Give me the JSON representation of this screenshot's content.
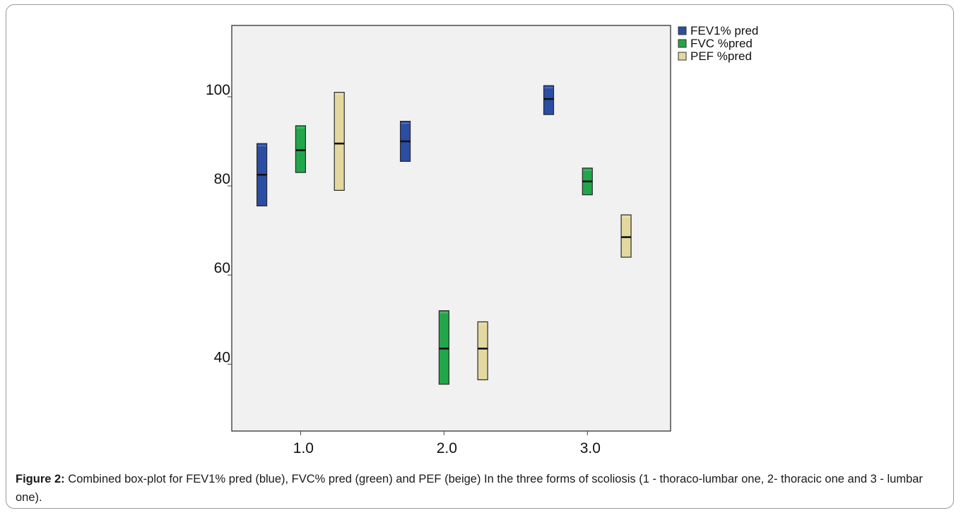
{
  "chart_data": {
    "type": "box",
    "ylim": [
      25,
      116
    ],
    "y_ticks": [
      40,
      60,
      80,
      100
    ],
    "x_ticks": [
      {
        "value": 1.0,
        "label": "1.0"
      },
      {
        "value": 2.0,
        "label": "2.0"
      },
      {
        "value": 3.0,
        "label": "3.0"
      }
    ],
    "xlim": [
      0.52,
      3.58
    ],
    "groups": [
      1.0,
      2.0,
      3.0
    ],
    "series": [
      {
        "name": "FEV1% pred",
        "color": "#2b4da3",
        "offset": -0.27,
        "boxes": [
          {
            "group": 1.0,
            "q1": 75.5,
            "median": 82.5,
            "q3": 89.5
          },
          {
            "group": 2.0,
            "q1": 85.5,
            "median": 90.0,
            "q3": 94.5
          },
          {
            "group": 3.0,
            "q1": 96.0,
            "median": 99.5,
            "q3": 102.5
          }
        ]
      },
      {
        "name": "FVC %pred",
        "color": "#22a64a",
        "offset": 0.0,
        "boxes": [
          {
            "group": 1.0,
            "q1": 83.0,
            "median": 88.0,
            "q3": 93.5
          },
          {
            "group": 2.0,
            "q1": 35.5,
            "median": 43.5,
            "q3": 52.0
          },
          {
            "group": 3.0,
            "q1": 78.0,
            "median": 81.0,
            "q3": 84.0
          }
        ]
      },
      {
        "name": "PEF %pred",
        "color": "#e3d9a0",
        "offset": 0.27,
        "boxes": [
          {
            "group": 1.0,
            "q1": 79.0,
            "median": 89.5,
            "q3": 101.0
          },
          {
            "group": 2.0,
            "q1": 36.5,
            "median": 43.5,
            "q3": 49.5
          },
          {
            "group": 3.0,
            "q1": 64.0,
            "median": 68.5,
            "q3": 73.5
          }
        ]
      }
    ],
    "legend_position": "top-right",
    "grid": false,
    "background": "#f1f1f1"
  },
  "caption": {
    "label": "Figure 2:",
    "text": " Combined box-plot for FEV1% pred (blue), FVC% pred (green) and PEF (beige) In the three forms of scoliosis (1 - thoraco-lumbar one, 2- thoracic one and 3 - lumbar one)."
  }
}
